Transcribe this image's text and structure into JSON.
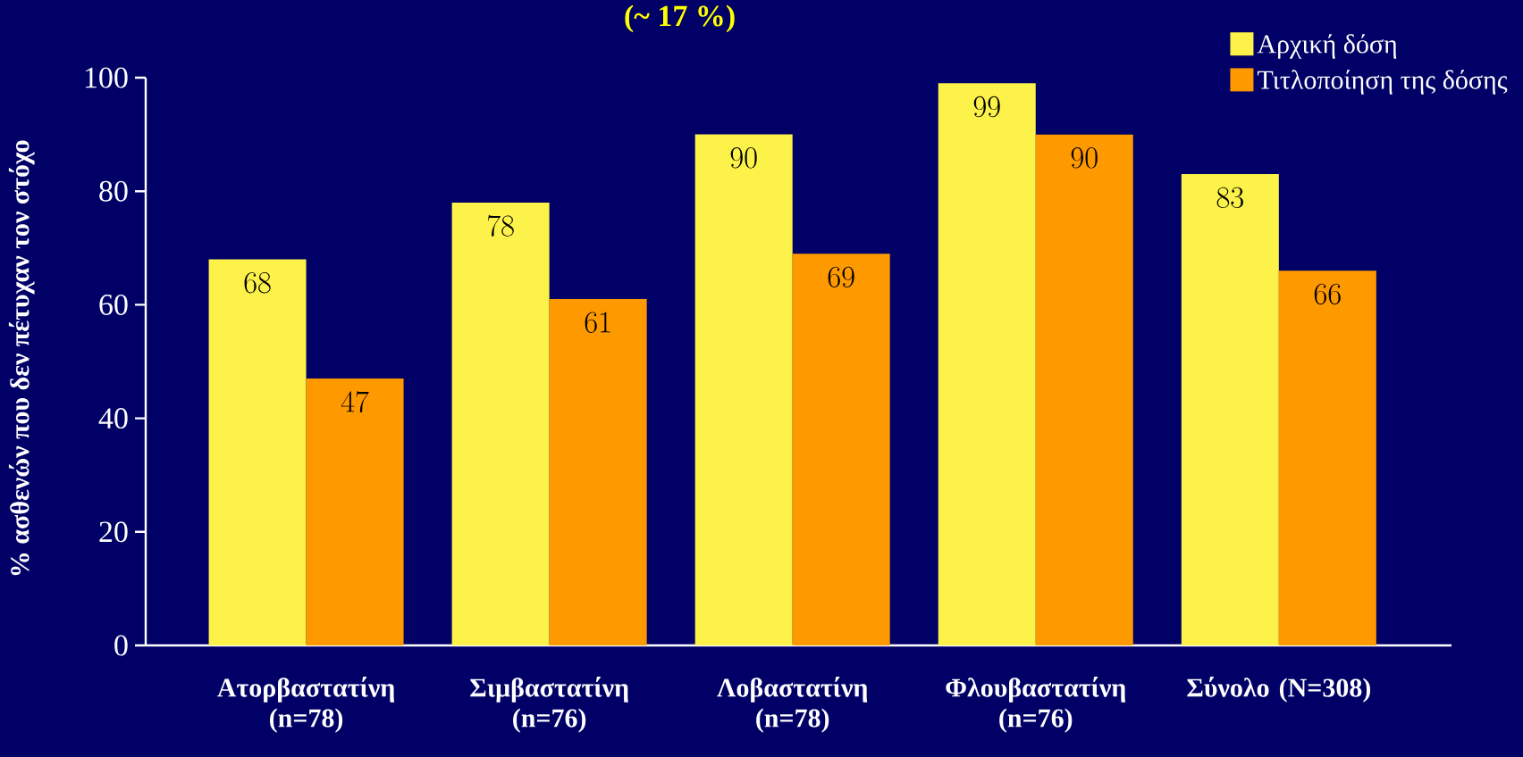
{
  "chart_data": {
    "type": "bar",
    "title": "(~ 17 %)",
    "ylabel": "% ασθενών που δεν πέτυχαν τον στόχο",
    "categories": [
      "Ατορβαστατίνη (n=78)",
      "Σιμβαστατίνη (n=76)",
      "Λοβαστατίνη (n=78)",
      "Φλουβαστατίνη (n=76)",
      "Σύνολο (N=308)"
    ],
    "series": [
      {
        "name": "Αρχική δόση",
        "color": "#fdf24a",
        "values": [
          68,
          78,
          90,
          99,
          83
        ]
      },
      {
        "name": "Τιτλοποίηση της δόσης",
        "color": "#ff9900",
        "values": [
          47,
          61,
          69,
          90,
          66
        ]
      }
    ],
    "ylim": [
      0,
      100
    ],
    "yticks": [
      0,
      20,
      40,
      60,
      80,
      100
    ],
    "data_labels": true,
    "grid": false,
    "legend": "top right"
  }
}
